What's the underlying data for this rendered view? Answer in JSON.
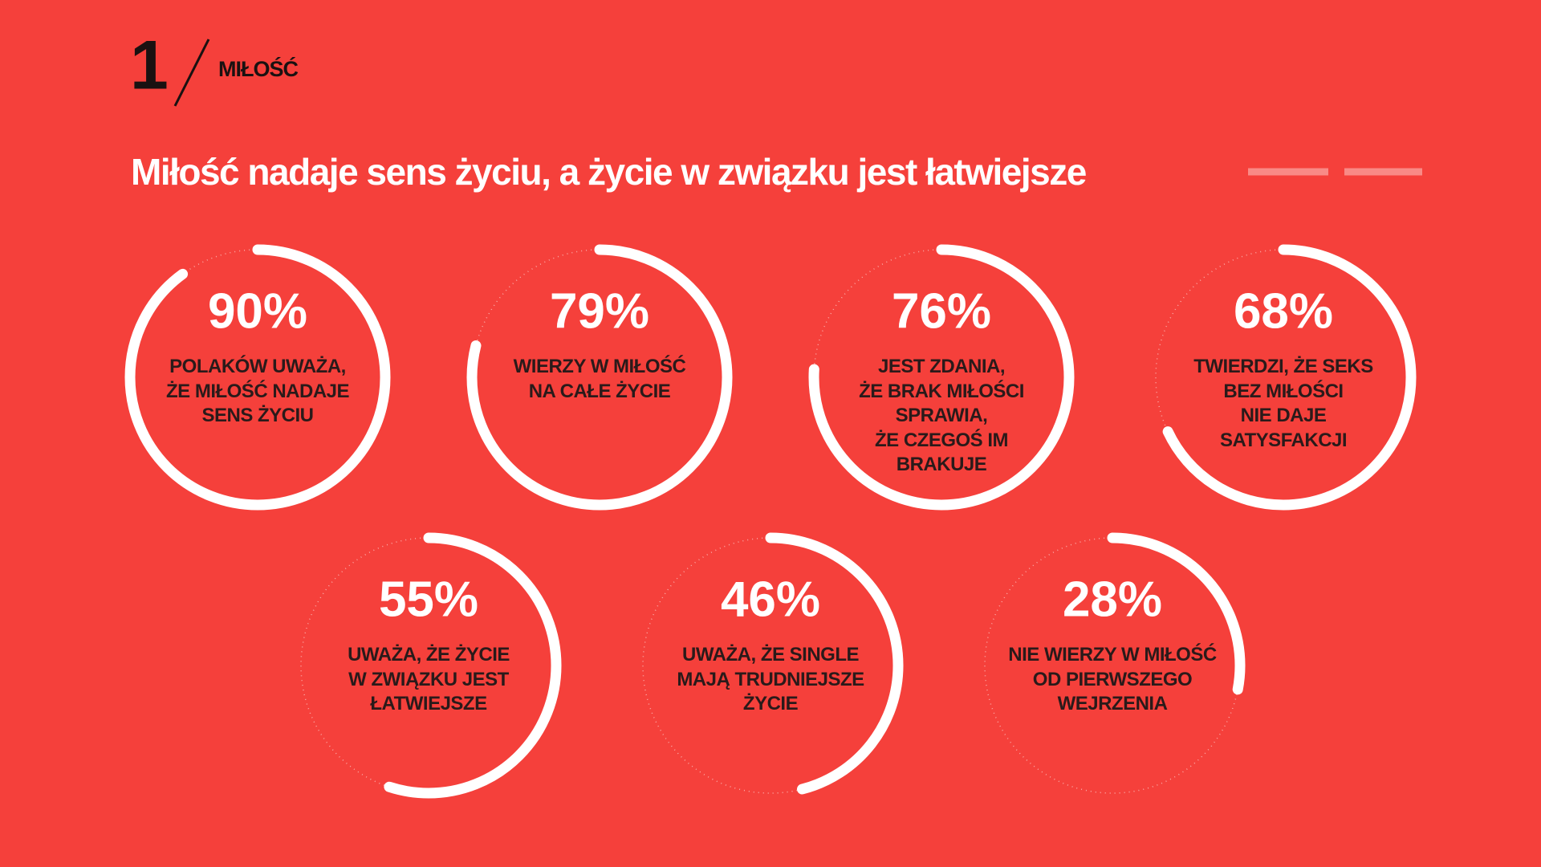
{
  "section_number": "1",
  "section_title": "MIŁOŚĆ",
  "chart_data": {
    "type": "ring",
    "title": "Miłość nadaje sens życiu, a życie w związku jest łatwiejsze",
    "categories": [
      "POLAKÓW UWAŻA,\nŻE MIŁOŚĆ NADAJE\nSENS ŻYCIU",
      "WIERZY W MIŁOŚĆ\nNA CAŁE ŻYCIE",
      "JEST ZDANIA,\nŻE BRAK MIŁOŚCI\nSPRAWIA,\nŻE CZEGOŚ IM\nBRAKUJE",
      "TWIERDZI, ŻE SEKS\nBEZ MIŁOŚCI\nNIE DAJE\nSATYSFAKCJI",
      "UWAŻA, ŻE ŻYCIE\nW ZWIĄZKU JEST\nŁATWIEJSZE",
      "UWAŻA, ŻE SINGLE\nMAJĄ TRUDNIEJSZE\nŻYCIE",
      "NIE WIERZY W MIŁOŚĆ\nOD PIERWSZEGO\nWEJRZENIA"
    ],
    "values": [
      90,
      79,
      76,
      68,
      55,
      46,
      28
    ],
    "value_labels": [
      "90%",
      "79%",
      "76%",
      "68%",
      "55%",
      "46%",
      "28%"
    ],
    "ylim": [
      0,
      100
    ],
    "color": "#ffffff"
  }
}
